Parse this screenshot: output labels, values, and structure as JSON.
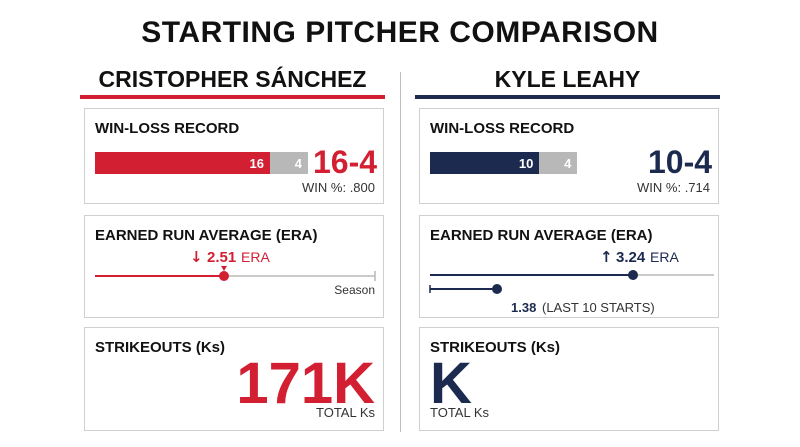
{
  "title": "STARTING PITCHER COMPARISON",
  "colors": {
    "red": "#d21f31",
    "navy": "#1b2a4e",
    "gray": "#b8b8b8"
  },
  "labels": {
    "win_loss": "WIN-LOSS RECORD",
    "era": "EARNED RUN AVERAGE (ERA)",
    "strikeouts": "STRIKEOUTS (Ks)",
    "total_ks": "TOTAL Ks"
  },
  "chart_data": [
    {
      "type": "bar",
      "player": "CRISTOPHER SÁNCHEZ",
      "wins": 16,
      "losses": 4,
      "record": "16-4",
      "win_pct": "WIN %: .800",
      "era": {
        "season": 2.51,
        "season_label": "2.51",
        "season_suffix": "ERA",
        "arrow": "↓",
        "axis_label": "Season"
      },
      "strikeouts": "171K"
    },
    {
      "type": "bar",
      "player": "KYLE LEAHY",
      "wins": 10,
      "losses": 4,
      "record": "10-4",
      "win_pct": "WIN %: .714",
      "era": {
        "season": 3.24,
        "season_label": "3.24",
        "season_suffix": "ERA",
        "arrow": "↑",
        "last10": 1.38,
        "last10_label": "1.38",
        "last10_suffix": "(LAST 10 STARTS)"
      },
      "strikeouts": "K"
    }
  ]
}
